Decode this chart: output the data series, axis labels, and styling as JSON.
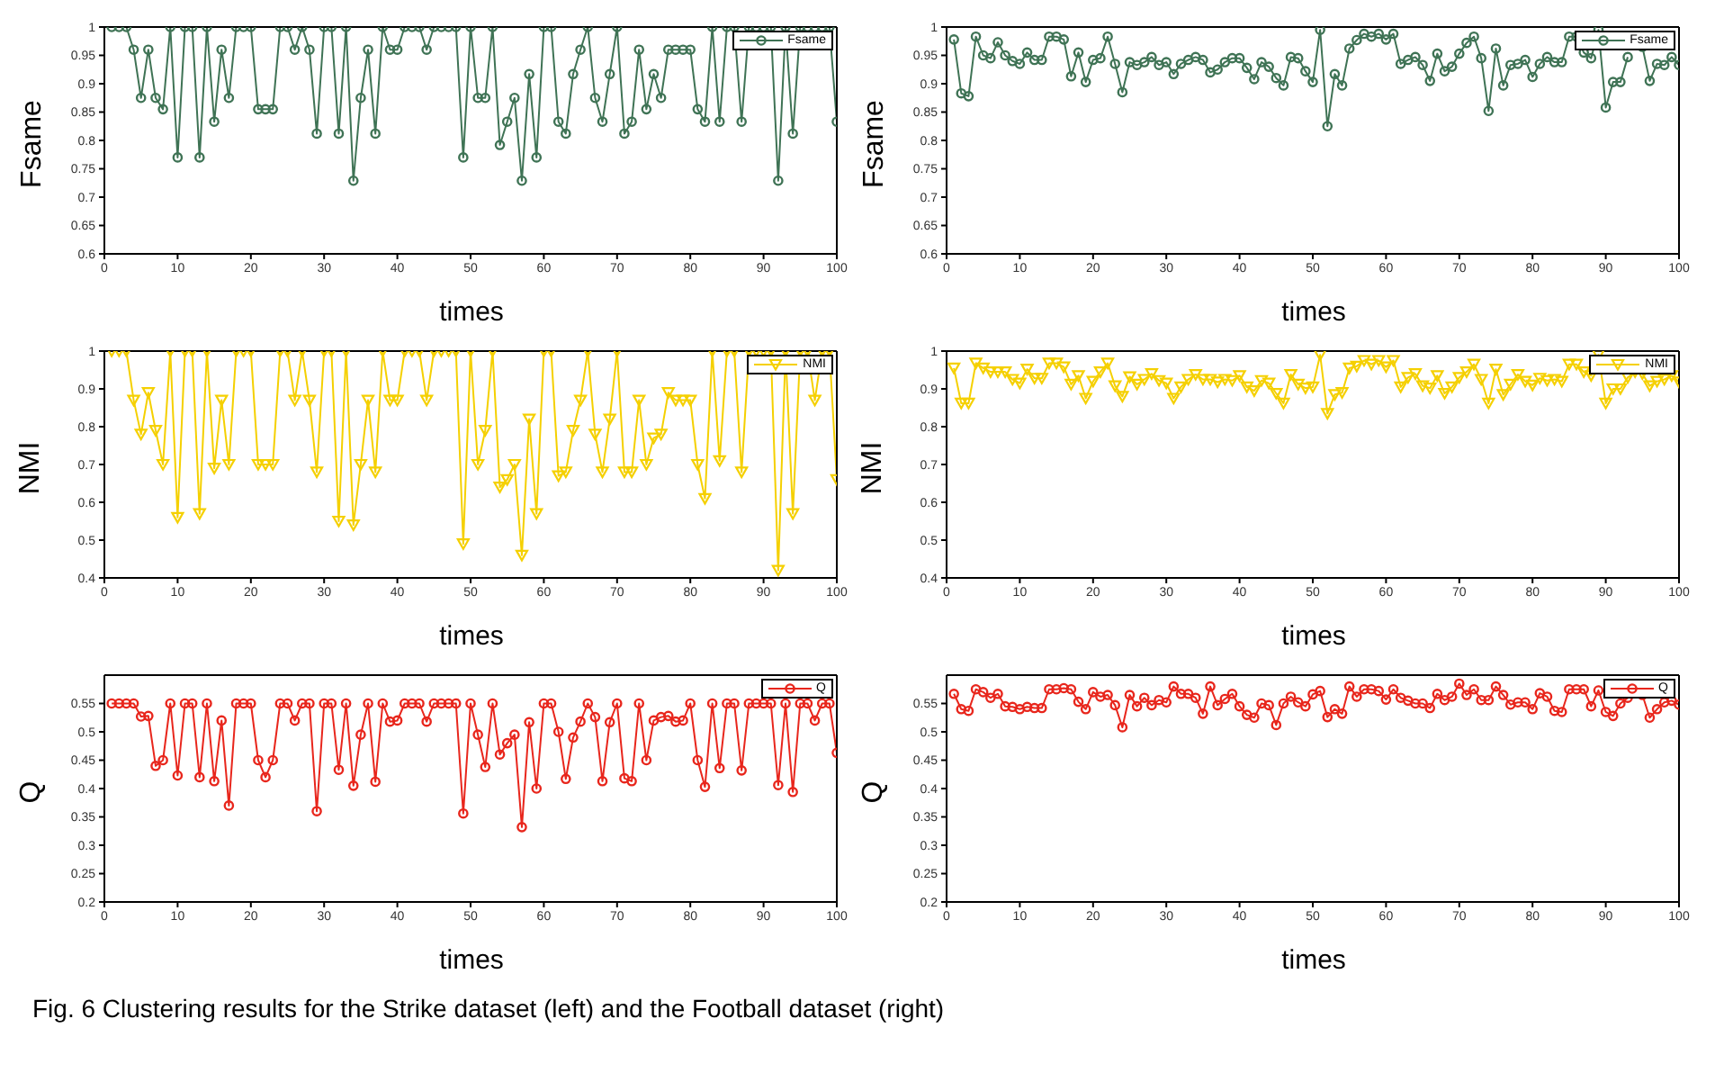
{
  "chart_data": [
    {
      "type": "line",
      "xlabel": "times",
      "ylabel": "Fsame",
      "xlim": [
        0,
        100
      ],
      "xticks": [
        0,
        10,
        20,
        30,
        40,
        50,
        60,
        70,
        80,
        90,
        100
      ],
      "ylim": [
        0.6,
        1
      ],
      "yticks": [
        0.6,
        0.65,
        0.7,
        0.75,
        0.8,
        0.85,
        0.9,
        0.95,
        1
      ],
      "legend": "top right",
      "marker": "circle",
      "annotations": [
        "Fig. 6  Clustering results for the Strike dataset (left) and the Football dataset (right)"
      ],
      "x": [
        1,
        2,
        3,
        4,
        5,
        6,
        7,
        8,
        9,
        10,
        11,
        12,
        13,
        14,
        15,
        16,
        17,
        18,
        19,
        20,
        21,
        22,
        23,
        24,
        25,
        26,
        27,
        28,
        29,
        30,
        31,
        32,
        33,
        34,
        35,
        36,
        37,
        38,
        39,
        40,
        41,
        42,
        43,
        44,
        45,
        46,
        47,
        48,
        49,
        50,
        51,
        52,
        53,
        54,
        55,
        56,
        57,
        58,
        59,
        60,
        61,
        62,
        63,
        64,
        65,
        66,
        67,
        68,
        69,
        70,
        71,
        72,
        73,
        74,
        75,
        76,
        77,
        78,
        79,
        80,
        81,
        82,
        83,
        84,
        85,
        86,
        87,
        88,
        89,
        90,
        91,
        92,
        93,
        94,
        95,
        96,
        97,
        98,
        99,
        100
      ],
      "series": [
        {
          "name": "Fsame",
          "color": "#3f7355",
          "values": [
            1,
            1,
            1,
            0.96,
            0.875,
            0.96,
            0.875,
            0.855,
            1,
            0.77,
            1,
            1,
            0.77,
            1,
            0.833,
            0.96,
            0.875,
            1,
            1,
            1,
            0.855,
            0.855,
            0.855,
            1,
            1,
            0.96,
            1,
            0.96,
            0.812,
            1,
            1,
            0.812,
            1,
            0.729,
            0.875,
            0.96,
            0.812,
            1,
            0.96,
            0.96,
            1,
            1,
            1,
            0.96,
            1,
            1,
            1,
            1,
            0.77,
            1,
            0.875,
            0.875,
            1,
            0.792,
            0.833,
            0.875,
            0.729,
            0.917,
            0.77,
            1,
            1,
            0.833,
            0.812,
            0.917,
            0.96,
            1,
            0.875,
            0.833,
            0.917,
            1,
            0.812,
            0.833,
            0.96,
            0.855,
            0.917,
            0.875,
            0.96,
            0.96,
            0.96,
            0.96,
            0.855,
            0.833,
            1,
            0.833,
            1,
            1,
            0.833,
            1,
            1,
            1,
            1,
            0.729,
            1,
            0.812,
            1,
            1,
            1,
            1,
            1,
            0.833
          ]
        }
      ]
    },
    {
      "type": "line",
      "xlabel": "times",
      "ylabel": "Fsame",
      "xlim": [
        0,
        100
      ],
      "xticks": [
        0,
        10,
        20,
        30,
        40,
        50,
        60,
        70,
        80,
        90,
        100
      ],
      "ylim": [
        0.6,
        1
      ],
      "yticks": [
        0.6,
        0.65,
        0.7,
        0.75,
        0.8,
        0.85,
        0.9,
        0.95,
        1
      ],
      "legend": "top right",
      "marker": "circle",
      "x": [
        1,
        2,
        3,
        4,
        5,
        6,
        7,
        8,
        9,
        10,
        11,
        12,
        13,
        14,
        15,
        16,
        17,
        18,
        19,
        20,
        21,
        22,
        23,
        24,
        25,
        26,
        27,
        28,
        29,
        30,
        31,
        32,
        33,
        34,
        35,
        36,
        37,
        38,
        39,
        40,
        41,
        42,
        43,
        44,
        45,
        46,
        47,
        48,
        49,
        50,
        51,
        52,
        53,
        54,
        55,
        56,
        57,
        58,
        59,
        60,
        61,
        62,
        63,
        64,
        65,
        66,
        67,
        68,
        69,
        70,
        71,
        72,
        73,
        74,
        75,
        76,
        77,
        78,
        79,
        80,
        81,
        82,
        83,
        84,
        85,
        86,
        87,
        88,
        89,
        90,
        91,
        92,
        93,
        94,
        95,
        96,
        97,
        98,
        99,
        100
      ],
      "series": [
        {
          "name": "Fsame",
          "color": "#3f7355",
          "values": [
            0.978,
            0.883,
            0.878,
            0.983,
            0.95,
            0.945,
            0.973,
            0.95,
            0.94,
            0.935,
            0.955,
            0.942,
            0.942,
            0.983,
            0.983,
            0.978,
            0.913,
            0.955,
            0.903,
            0.942,
            0.945,
            0.983,
            0.935,
            0.885,
            0.938,
            0.933,
            0.938,
            0.947,
            0.933,
            0.938,
            0.917,
            0.935,
            0.942,
            0.947,
            0.942,
            0.92,
            0.925,
            0.938,
            0.945,
            0.945,
            0.928,
            0.908,
            0.938,
            0.93,
            0.91,
            0.897,
            0.947,
            0.945,
            0.922,
            0.903,
            0.995,
            0.825,
            0.917,
            0.897,
            0.962,
            0.977,
            0.988,
            0.983,
            0.988,
            0.978,
            0.988,
            0.935,
            0.942,
            0.947,
            0.933,
            0.905,
            0.953,
            0.922,
            0.93,
            0.953,
            0.972,
            0.983,
            0.945,
            0.852,
            0.962,
            0.897,
            0.933,
            0.935,
            0.942,
            0.912,
            0.935,
            0.947,
            0.938,
            0.938,
            0.983,
            0.983,
            0.955,
            0.945,
            0.995,
            0.858,
            0.903,
            0.903,
            0.947,
            null,
            0.965,
            0.905,
            0.935,
            0.933,
            0.947,
            0.933
          ]
        }
      ]
    },
    {
      "type": "line",
      "xlabel": "times",
      "ylabel": "NMI",
      "xlim": [
        0,
        100
      ],
      "xticks": [
        0,
        10,
        20,
        30,
        40,
        50,
        60,
        70,
        80,
        90,
        100
      ],
      "ylim": [
        0.4,
        1
      ],
      "yticks": [
        0.4,
        0.5,
        0.6,
        0.7,
        0.8,
        0.9,
        1
      ],
      "legend": "top right",
      "marker": "triangle",
      "x": [
        1,
        2,
        3,
        4,
        5,
        6,
        7,
        8,
        9,
        10,
        11,
        12,
        13,
        14,
        15,
        16,
        17,
        18,
        19,
        20,
        21,
        22,
        23,
        24,
        25,
        26,
        27,
        28,
        29,
        30,
        31,
        32,
        33,
        34,
        35,
        36,
        37,
        38,
        39,
        40,
        41,
        42,
        43,
        44,
        45,
        46,
        47,
        48,
        49,
        50,
        51,
        52,
        53,
        54,
        55,
        56,
        57,
        58,
        59,
        60,
        61,
        62,
        63,
        64,
        65,
        66,
        67,
        68,
        69,
        70,
        71,
        72,
        73,
        74,
        75,
        76,
        77,
        78,
        79,
        80,
        81,
        82,
        83,
        84,
        85,
        86,
        87,
        88,
        89,
        90,
        91,
        92,
        93,
        94,
        95,
        96,
        97,
        98,
        99,
        100
      ],
      "series": [
        {
          "name": "NMI",
          "color": "#f5d000",
          "values": [
            1,
            1,
            1,
            0.87,
            0.78,
            0.89,
            0.79,
            0.7,
            1,
            0.56,
            1,
            1,
            0.57,
            1,
            0.69,
            0.87,
            0.7,
            1,
            1,
            1,
            0.7,
            0.7,
            0.7,
            1,
            1,
            0.87,
            1,
            0.87,
            0.68,
            1,
            1,
            0.55,
            1,
            0.54,
            0.7,
            0.87,
            0.68,
            1,
            0.87,
            0.87,
            1,
            1,
            1,
            0.87,
            1,
            1,
            1,
            1,
            0.49,
            1,
            0.7,
            0.79,
            1,
            0.64,
            0.66,
            0.7,
            0.46,
            0.82,
            0.57,
            1,
            1,
            0.67,
            0.68,
            0.79,
            0.87,
            1,
            0.78,
            0.68,
            0.82,
            1,
            0.68,
            0.68,
            0.87,
            0.7,
            0.77,
            0.78,
            0.89,
            0.87,
            0.87,
            0.87,
            0.7,
            0.61,
            1,
            0.71,
            1,
            1,
            0.68,
            1,
            1,
            1,
            1,
            0.42,
            1,
            0.57,
            1,
            1,
            0.87,
            1,
            1,
            0.66
          ]
        }
      ]
    },
    {
      "type": "line",
      "xlabel": "times",
      "ylabel": "NMI",
      "xlim": [
        0,
        100
      ],
      "xticks": [
        0,
        10,
        20,
        30,
        40,
        50,
        60,
        70,
        80,
        90,
        100
      ],
      "ylim": [
        0.4,
        1
      ],
      "yticks": [
        0.4,
        0.5,
        0.6,
        0.7,
        0.8,
        0.9,
        1
      ],
      "legend": "top right",
      "marker": "triangle",
      "x": [
        1,
        2,
        3,
        4,
        5,
        6,
        7,
        8,
        9,
        10,
        11,
        12,
        13,
        14,
        15,
        16,
        17,
        18,
        19,
        20,
        21,
        22,
        23,
        24,
        25,
        26,
        27,
        28,
        29,
        30,
        31,
        32,
        33,
        34,
        35,
        36,
        37,
        38,
        39,
        40,
        41,
        42,
        43,
        44,
        45,
        46,
        47,
        48,
        49,
        50,
        51,
        52,
        53,
        54,
        55,
        56,
        57,
        58,
        59,
        60,
        61,
        62,
        63,
        64,
        65,
        66,
        67,
        68,
        69,
        70,
        71,
        72,
        73,
        74,
        75,
        76,
        77,
        78,
        79,
        80,
        81,
        82,
        83,
        84,
        85,
        86,
        87,
        88,
        89,
        90,
        91,
        92,
        93,
        94,
        95,
        96,
        97,
        98,
        99,
        100
      ],
      "series": [
        {
          "name": "NMI",
          "color": "#f5d000",
          "values": [
            0.955,
            0.862,
            0.862,
            0.968,
            0.955,
            0.945,
            0.945,
            0.945,
            0.925,
            0.915,
            0.952,
            0.928,
            0.928,
            0.968,
            0.968,
            0.958,
            0.912,
            0.935,
            0.875,
            0.92,
            0.945,
            0.968,
            0.908,
            0.88,
            0.932,
            0.912,
            0.925,
            0.94,
            0.922,
            0.915,
            0.875,
            0.905,
            0.925,
            0.938,
            0.925,
            0.925,
            0.918,
            0.925,
            0.922,
            0.935,
            0.905,
            0.895,
            0.922,
            0.915,
            0.888,
            0.862,
            0.938,
            0.912,
            0.902,
            0.905,
            0.99,
            0.835,
            0.885,
            0.89,
            0.955,
            0.96,
            0.975,
            0.965,
            0.975,
            0.958,
            0.975,
            0.905,
            0.93,
            0.94,
            0.908,
            0.902,
            0.935,
            0.888,
            0.905,
            0.93,
            0.945,
            0.965,
            0.925,
            0.862,
            0.952,
            0.885,
            0.912,
            0.938,
            0.92,
            0.91,
            0.928,
            0.922,
            0.925,
            0.92,
            0.965,
            0.965,
            0.945,
            0.935,
            0.99,
            0.862,
            0.9,
            0.9,
            0.93,
            0.945,
            0.94,
            0.908,
            0.92,
            0.925,
            0.935,
            0.918
          ]
        }
      ]
    },
    {
      "type": "line",
      "xlabel": "times",
      "ylabel": "Q",
      "xlim": [
        0,
        100
      ],
      "xticks": [
        0,
        10,
        20,
        30,
        40,
        50,
        60,
        70,
        80,
        90,
        100
      ],
      "ylim": [
        0.2,
        0.6
      ],
      "yticks": [
        0.2,
        0.25,
        0.3,
        0.35,
        0.4,
        0.45,
        0.5,
        0.55
      ],
      "legend": "top right",
      "marker": "circle",
      "x": [
        1,
        2,
        3,
        4,
        5,
        6,
        7,
        8,
        9,
        10,
        11,
        12,
        13,
        14,
        15,
        16,
        17,
        18,
        19,
        20,
        21,
        22,
        23,
        24,
        25,
        26,
        27,
        28,
        29,
        30,
        31,
        32,
        33,
        34,
        35,
        36,
        37,
        38,
        39,
        40,
        41,
        42,
        43,
        44,
        45,
        46,
        47,
        48,
        49,
        50,
        51,
        52,
        53,
        54,
        55,
        56,
        57,
        58,
        59,
        60,
        61,
        62,
        63,
        64,
        65,
        66,
        67,
        68,
        69,
        70,
        71,
        72,
        73,
        74,
        75,
        76,
        77,
        78,
        79,
        80,
        81,
        82,
        83,
        84,
        85,
        86,
        87,
        88,
        89,
        90,
        91,
        92,
        93,
        94,
        95,
        96,
        97,
        98,
        99,
        100
      ],
      "series": [
        {
          "name": "Q",
          "color": "#e8261c",
          "values": [
            0.55,
            0.55,
            0.55,
            0.55,
            0.527,
            0.528,
            0.44,
            0.45,
            0.55,
            0.423,
            0.55,
            0.55,
            0.42,
            0.55,
            0.413,
            0.52,
            0.37,
            0.55,
            0.55,
            0.55,
            0.45,
            0.42,
            0.45,
            0.55,
            0.55,
            0.52,
            0.55,
            0.55,
            0.36,
            0.55,
            0.55,
            0.433,
            0.55,
            0.405,
            0.495,
            0.55,
            0.412,
            0.55,
            0.518,
            0.52,
            0.55,
            0.55,
            0.55,
            0.518,
            0.55,
            0.55,
            0.55,
            0.55,
            0.356,
            0.55,
            0.495,
            0.438,
            0.55,
            0.46,
            0.48,
            0.495,
            0.332,
            0.517,
            0.4,
            0.55,
            0.55,
            0.5,
            0.417,
            0.49,
            0.518,
            0.55,
            0.526,
            0.413,
            0.517,
            0.55,
            0.418,
            0.413,
            0.55,
            0.45,
            0.52,
            0.526,
            0.528,
            0.518,
            0.52,
            0.55,
            0.45,
            0.403,
            0.55,
            0.436,
            0.55,
            0.55,
            0.432,
            0.55,
            0.55,
            0.55,
            0.55,
            0.406,
            0.55,
            0.394,
            0.55,
            0.55,
            0.52,
            0.55,
            0.55,
            0.463
          ]
        }
      ]
    },
    {
      "type": "line",
      "xlabel": "times",
      "ylabel": "Q",
      "xlim": [
        0,
        100
      ],
      "xticks": [
        0,
        10,
        20,
        30,
        40,
        50,
        60,
        70,
        80,
        90,
        100
      ],
      "ylim": [
        0.2,
        0.6
      ],
      "yticks": [
        0.2,
        0.25,
        0.3,
        0.35,
        0.4,
        0.45,
        0.5,
        0.55
      ],
      "legend": "top right",
      "marker": "circle",
      "x": [
        1,
        2,
        3,
        4,
        5,
        6,
        7,
        8,
        9,
        10,
        11,
        12,
        13,
        14,
        15,
        16,
        17,
        18,
        19,
        20,
        21,
        22,
        23,
        24,
        25,
        26,
        27,
        28,
        29,
        30,
        31,
        32,
        33,
        34,
        35,
        36,
        37,
        38,
        39,
        40,
        41,
        42,
        43,
        44,
        45,
        46,
        47,
        48,
        49,
        50,
        51,
        52,
        53,
        54,
        55,
        56,
        57,
        58,
        59,
        60,
        61,
        62,
        63,
        64,
        65,
        66,
        67,
        68,
        69,
        70,
        71,
        72,
        73,
        74,
        75,
        76,
        77,
        78,
        79,
        80,
        81,
        82,
        83,
        84,
        85,
        86,
        87,
        88,
        89,
        90,
        91,
        92,
        93,
        94,
        95,
        96,
        97,
        98,
        99,
        100
      ],
      "series": [
        {
          "name": "Q",
          "color": "#e8261c",
          "values": [
            0.567,
            0.54,
            0.537,
            0.575,
            0.57,
            0.56,
            0.567,
            0.545,
            0.544,
            0.54,
            0.544,
            0.542,
            0.542,
            0.575,
            0.575,
            0.577,
            0.575,
            0.553,
            0.54,
            0.57,
            0.562,
            0.565,
            0.547,
            0.508,
            0.565,
            0.545,
            0.56,
            0.547,
            0.556,
            0.552,
            0.58,
            0.567,
            0.567,
            0.56,
            0.532,
            0.58,
            0.547,
            0.558,
            0.567,
            0.545,
            0.53,
            0.525,
            0.55,
            0.547,
            0.512,
            0.55,
            0.562,
            0.552,
            0.545,
            0.566,
            0.572,
            0.526,
            0.54,
            0.532,
            0.58,
            0.562,
            0.575,
            0.575,
            0.572,
            0.557,
            0.575,
            0.56,
            0.555,
            0.55,
            0.55,
            0.542,
            0.567,
            0.556,
            0.562,
            0.585,
            0.565,
            0.575,
            0.556,
            0.556,
            0.58,
            0.565,
            0.548,
            0.552,
            0.552,
            0.54,
            0.568,
            0.562,
            0.537,
            0.535,
            0.575,
            0.575,
            0.575,
            0.545,
            0.573,
            0.535,
            0.528,
            0.55,
            0.56,
            null,
            0.565,
            0.525,
            0.54,
            0.552,
            0.555,
            0.548
          ]
        }
      ]
    }
  ]
}
